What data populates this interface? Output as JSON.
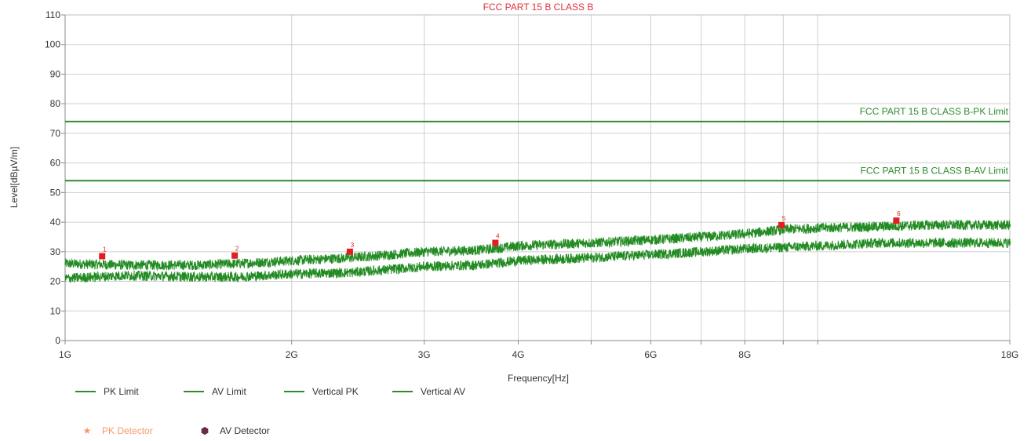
{
  "chart_data": {
    "type": "line",
    "title": "FCC PART 15 B CLASS B",
    "xlabel": "Frequency[Hz]",
    "ylabel": "Level[dBµV/m]",
    "x_scale": "log",
    "xlim_ghz": [
      1,
      18
    ],
    "ylim": [
      0,
      110
    ],
    "grid": true,
    "y_ticks": [
      0,
      10,
      20,
      30,
      40,
      50,
      60,
      70,
      80,
      90,
      100,
      110
    ],
    "x_ticks": [
      {
        "value": 1,
        "label": "1G"
      },
      {
        "value": 2,
        "label": "2G"
      },
      {
        "value": 3,
        "label": "3G"
      },
      {
        "value": 4,
        "label": "4G"
      },
      {
        "value": 6,
        "label": "6G"
      },
      {
        "value": 8,
        "label": "8G"
      },
      {
        "value": 18,
        "label": "18G"
      }
    ],
    "x_grid_extra": [
      5,
      7,
      9,
      10
    ],
    "limits": [
      {
        "name": "PK Limit",
        "value": 74,
        "label": "FCC PART 15 B CLASS B-PK Limit"
      },
      {
        "name": "AV Limit",
        "value": 54,
        "label": "FCC PART 15 B CLASS B-AV Limit"
      }
    ],
    "series": [
      {
        "name": "Vertical PK",
        "x_ghz": [
          1.0,
          1.2,
          1.5,
          1.7,
          2.0,
          2.4,
          2.7,
          3.0,
          3.5,
          3.7,
          4.0,
          5.0,
          6.0,
          7.0,
          8.0,
          9.0,
          10.0,
          12.0,
          14.0,
          16.0,
          18.0
        ],
        "y": [
          26,
          25.5,
          25.5,
          26,
          27,
          28,
          29,
          30,
          30.5,
          31,
          32,
          33,
          34,
          35,
          36,
          37.5,
          38,
          38.5,
          39,
          39,
          39
        ]
      },
      {
        "name": "Vertical AV",
        "x_ghz": [
          1.0,
          1.2,
          1.5,
          1.7,
          2.0,
          2.4,
          2.7,
          3.0,
          3.5,
          3.7,
          4.0,
          5.0,
          6.0,
          7.0,
          8.0,
          9.0,
          10.0,
          12.0,
          14.0,
          16.0,
          18.0
        ],
        "y": [
          21,
          22,
          21.5,
          21.5,
          22.5,
          23,
          24,
          25,
          25.5,
          26,
          27,
          28,
          29,
          30,
          31,
          31.5,
          32,
          33,
          33,
          33,
          33
        ]
      }
    ],
    "markers": [
      {
        "label": "1",
        "x_ghz": 1.12,
        "y": 28.5
      },
      {
        "label": "2",
        "x_ghz": 1.68,
        "y": 28.7
      },
      {
        "label": "3",
        "x_ghz": 2.39,
        "y": 30.0
      },
      {
        "label": "4",
        "x_ghz": 3.73,
        "y": 33.0
      },
      {
        "label": "5",
        "x_ghz": 8.95,
        "y": 39.0
      },
      {
        "label": "6",
        "x_ghz": 12.72,
        "y": 40.5
      }
    ],
    "legend": [
      "PK Limit",
      "AV Limit",
      "Vertical PK",
      "Vertical AV",
      "PK Detector",
      "AV Detector"
    ],
    "legend_placement": "bottom-left"
  },
  "colors": {
    "limit_line": "#2e8b2e",
    "trace": "#228b22",
    "legend_line": "#2e8b2e",
    "title": "#e0303b",
    "marker": "#e02020",
    "pk_detector": "#f59a6a",
    "av_detector": "#6a2a4a",
    "grid": "#d0d0d0",
    "axis": "#888888"
  },
  "legend": {
    "pk_limit": "PK Limit",
    "av_limit": "AV Limit",
    "vertical_pk": "Vertical PK",
    "vertical_av": "Vertical AV",
    "pk_detector": "PK Detector",
    "av_detector": "AV Detector",
    "pk_detector_symbol": "★",
    "av_detector_symbol": "⬢"
  }
}
